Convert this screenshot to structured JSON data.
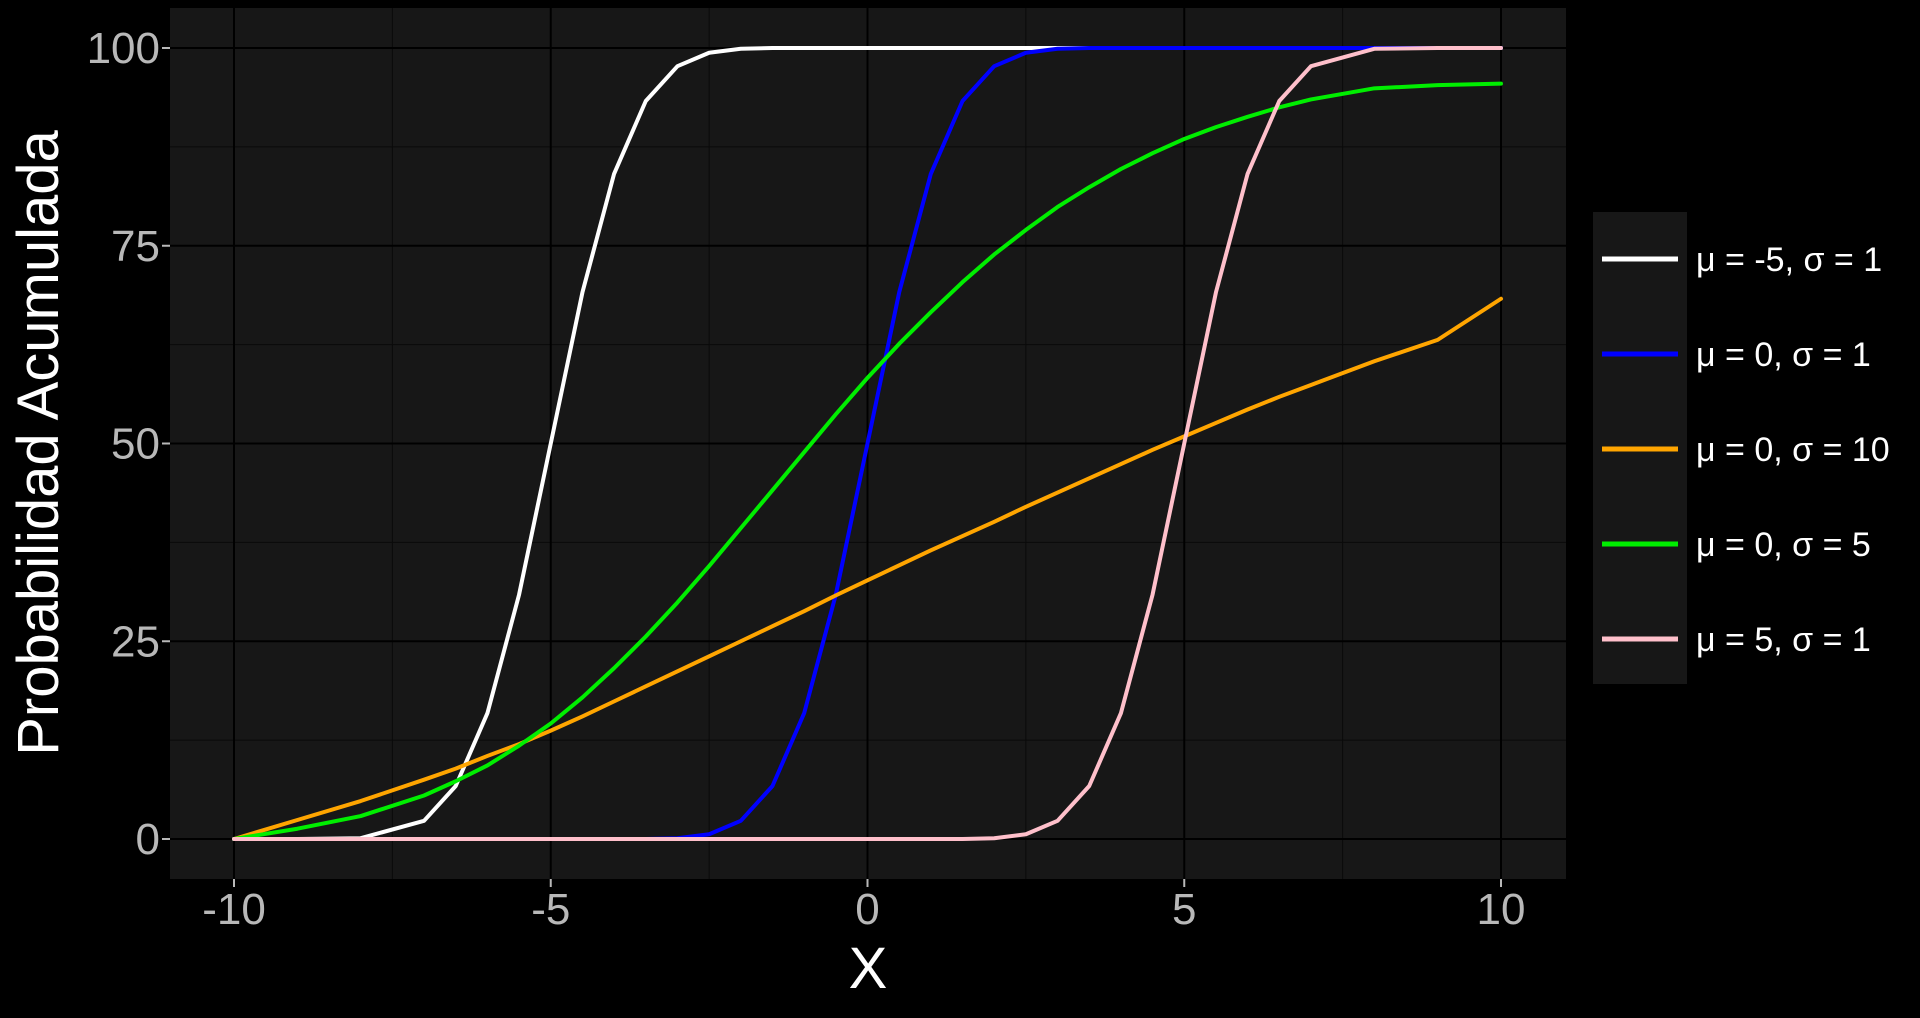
{
  "chart_data": {
    "type": "line",
    "title": "",
    "xlabel": "X",
    "ylabel": "Probabilidad Acumulada",
    "xlim": [
      -10,
      10
    ],
    "ylim": [
      0,
      100
    ],
    "x_ticks": [
      "-10",
      "-5",
      "0",
      "5",
      "10"
    ],
    "y_ticks": [
      "0",
      "25",
      "50",
      "75",
      "100"
    ],
    "grid": true,
    "legend_position": "right",
    "x": [
      -10,
      -9,
      -8,
      -7,
      -6.5,
      -6,
      -5.5,
      -5,
      -4.5,
      -4,
      -3.5,
      -3,
      -2.5,
      -2,
      -1.5,
      -1,
      -0.5,
      0,
      0.5,
      1,
      1.5,
      2,
      2.5,
      3,
      3.5,
      4,
      4.5,
      5,
      5.5,
      6,
      6.5,
      7,
      8,
      9,
      10
    ],
    "series": [
      {
        "name": "μ = -5, σ = 1",
        "color": "#ffffff",
        "values": [
          0,
          0.003,
          0.1,
          2.3,
          6.7,
          15.9,
          30.9,
          50,
          69.1,
          84.1,
          93.3,
          97.7,
          99.4,
          99.9,
          100,
          100,
          100,
          100,
          100,
          100,
          100,
          100,
          100,
          100,
          100,
          100,
          100,
          100,
          100,
          100,
          100,
          100,
          100,
          100,
          100
        ]
      },
      {
        "name": "μ = 0, σ = 1",
        "color": "#0000ff",
        "values": [
          0,
          0,
          0,
          0,
          0,
          0,
          0,
          0,
          0,
          0,
          0,
          0.1,
          0.6,
          2.3,
          6.7,
          15.9,
          30.9,
          50,
          69.1,
          84.1,
          93.3,
          97.7,
          99.4,
          99.9,
          100,
          100,
          100,
          100,
          100,
          100,
          100,
          100,
          100,
          100,
          100
        ]
      },
      {
        "name": "μ = 0, σ = 10",
        "color": "#ffa500",
        "values": [
          0,
          2.4,
          4.8,
          7.5,
          8.9,
          10.5,
          12.0,
          13.7,
          15.5,
          17.4,
          19.3,
          21.2,
          23.1,
          25.0,
          26.9,
          28.8,
          30.8,
          32.7,
          34.6,
          36.5,
          38.3,
          40.1,
          42.0,
          43.8,
          45.6,
          47.4,
          49.2,
          50.9,
          52.6,
          54.3,
          55.9,
          57.4,
          60.4,
          63.1,
          68.3
        ]
      },
      {
        "name": "μ = 0, σ = 5",
        "color": "#00ee00",
        "values": [
          0,
          1.3,
          2.9,
          5.5,
          7.3,
          9.3,
          11.8,
          14.6,
          17.9,
          21.6,
          25.6,
          29.9,
          34.5,
          39.3,
          44.1,
          48.9,
          53.7,
          58.3,
          62.6,
          66.6,
          70.4,
          73.9,
          77.0,
          79.9,
          82.4,
          84.7,
          86.7,
          88.5,
          90.0,
          91.3,
          92.5,
          93.5,
          94.9,
          95.3,
          95.5
        ]
      },
      {
        "name": "μ = 5, σ = 1",
        "color": "#ffc0cb",
        "values": [
          0,
          0,
          0,
          0,
          0,
          0,
          0,
          0,
          0,
          0,
          0,
          0,
          0,
          0,
          0,
          0,
          0,
          0,
          0,
          0,
          0,
          0.1,
          0.6,
          2.3,
          6.7,
          15.9,
          30.9,
          50,
          69.1,
          84.1,
          93.3,
          97.7,
          99.9,
          100,
          100
        ]
      }
    ]
  },
  "colors": {
    "background": "#000000",
    "panel": "#171717",
    "grid_major": "#000000",
    "grid_minor": "#0a0a0a",
    "legend_bg": "#171717"
  }
}
